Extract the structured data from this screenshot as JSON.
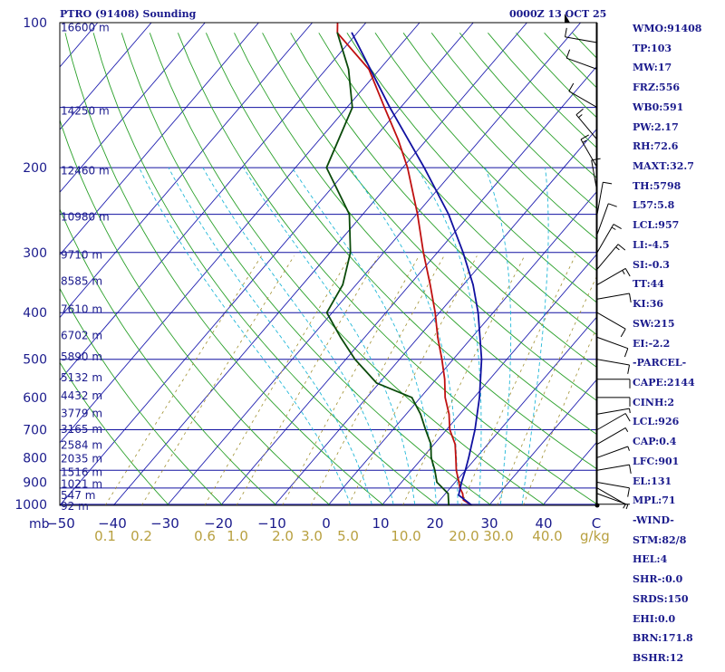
{
  "header": {
    "title": "PTRO (91408) Sounding",
    "timestamp": "0000Z 13 OCT 25"
  },
  "chart_data": {
    "type": "line",
    "title": "PTRO (91408) Sounding",
    "subtitle": "0000Z 13 OCT 25",
    "x_ticks": [
      "−50",
      "−40",
      "−30",
      "−20",
      "−10",
      "0",
      "10",
      "20",
      "30",
      "40",
      "C"
    ],
    "x_tick_values": [
      -50,
      -40,
      -30,
      -20,
      -10,
      0,
      10,
      20,
      30,
      40
    ],
    "x_unit": "C",
    "y_unit": "mb",
    "xlim": [
      -50,
      50
    ],
    "ylim": [
      1000,
      100
    ],
    "y_scale": "log",
    "pressure_levels": [
      1000,
      925,
      850,
      700,
      500,
      400,
      300,
      250,
      200,
      150,
      100
    ],
    "pressure_labels": [
      {
        "p": 1000,
        "label": "1000"
      },
      {
        "p": 900,
        "label": "900"
      },
      {
        "p": 800,
        "label": "800"
      },
      {
        "p": 700,
        "label": "700"
      },
      {
        "p": 600,
        "label": "600"
      },
      {
        "p": 500,
        "label": "500"
      },
      {
        "p": 400,
        "label": "400"
      },
      {
        "p": 300,
        "label": "300"
      },
      {
        "p": 200,
        "label": "200"
      },
      {
        "p": 100,
        "label": "100"
      }
    ],
    "height_labels": [
      {
        "p": 1005,
        "label": "92 m"
      },
      {
        "p": 955,
        "label": "547 m"
      },
      {
        "p": 903,
        "label": "1021 m"
      },
      {
        "p": 855,
        "label": "1516 m"
      },
      {
        "p": 800,
        "label": "2035 m"
      },
      {
        "p": 750,
        "label": "2584 m"
      },
      {
        "p": 695,
        "label": "3165 m"
      },
      {
        "p": 645,
        "label": "3779 m"
      },
      {
        "p": 592,
        "label": "4432 m"
      },
      {
        "p": 543,
        "label": "5132 m"
      },
      {
        "p": 492,
        "label": "5890 m"
      },
      {
        "p": 444,
        "label": "6702 m"
      },
      {
        "p": 392,
        "label": "7610 m"
      },
      {
        "p": 343,
        "label": "8585 m"
      },
      {
        "p": 302,
        "label": "9710 m"
      },
      {
        "p": 252,
        "label": "10980 m"
      },
      {
        "p": 202,
        "label": "12460 m"
      },
      {
        "p": 152,
        "label": "14250 m"
      },
      {
        "p": 102,
        "label": "16600 m"
      }
    ],
    "mixing_ratio_labels": [
      "0.1",
      "0.2",
      "0.6",
      "1.0",
      "2.0",
      "3.0",
      "5.0",
      "10.0",
      "20.0",
      "30.0",
      "40.0"
    ],
    "mixing_ratio_values": [
      0.1,
      0.2,
      0.6,
      1.0,
      2.0,
      3.0,
      5.0,
      10.0,
      20.0,
      30.0,
      40.0
    ],
    "mixing_ratio_unit": "g/kg",
    "series": [
      {
        "color": "#c01010",
        "points": [
          {
            "p": 1005,
            "t": 26.8
          },
          {
            "p": 980,
            "t": 24.4
          },
          {
            "p": 950,
            "t": 23.2
          },
          {
            "p": 925,
            "t": 21.8
          },
          {
            "p": 900,
            "t": 20.7
          },
          {
            "p": 850,
            "t": 18.3
          },
          {
            "p": 800,
            "t": 16.2
          },
          {
            "p": 750,
            "t": 13.9
          },
          {
            "p": 700,
            "t": 10.6
          },
          {
            "p": 650,
            "t": 8.0
          },
          {
            "p": 600,
            "t": 4.6
          },
          {
            "p": 550,
            "t": 1.6
          },
          {
            "p": 500,
            "t": -2.1
          },
          {
            "p": 450,
            "t": -6.4
          },
          {
            "p": 400,
            "t": -10.8
          },
          {
            "p": 350,
            "t": -16.2
          },
          {
            "p": 300,
            "t": -22.6
          },
          {
            "p": 250,
            "t": -29.8
          },
          {
            "p": 200,
            "t": -39.1
          },
          {
            "p": 175,
            "t": -45.3
          },
          {
            "p": 150,
            "t": -53.0
          },
          {
            "p": 125,
            "t": -62.0
          },
          {
            "p": 105,
            "t": -73.7
          },
          {
            "p": 100,
            "t": -75.3
          }
        ]
      },
      {
        "color": "#0a4a0a",
        "points": [
          {
            "p": 1005,
            "t": 22.5
          },
          {
            "p": 950,
            "t": 20.5
          },
          {
            "p": 900,
            "t": 16.6
          },
          {
            "p": 850,
            "t": 14.3
          },
          {
            "p": 800,
            "t": 11.6
          },
          {
            "p": 750,
            "t": 9.4
          },
          {
            "p": 700,
            "t": 6.1
          },
          {
            "p": 650,
            "t": 2.7
          },
          {
            "p": 600,
            "t": -1.6
          },
          {
            "p": 560,
            "t": -10.5
          },
          {
            "p": 500,
            "t": -18.3
          },
          {
            "p": 450,
            "t": -24.5
          },
          {
            "p": 400,
            "t": -31.0
          },
          {
            "p": 350,
            "t": -32.5
          },
          {
            "p": 300,
            "t": -36.2
          },
          {
            "p": 250,
            "t": -42.5
          },
          {
            "p": 200,
            "t": -54.2
          },
          {
            "p": 150,
            "t": -59.0
          },
          {
            "p": 125,
            "t": -65.8
          },
          {
            "p": 105,
            "t": -73.7
          }
        ]
      },
      {
        "color": "#1010a0",
        "points": [
          {
            "p": 1005,
            "t": 26.8
          },
          {
            "p": 957,
            "t": 22.7
          },
          {
            "p": 900,
            "t": 21.2
          },
          {
            "p": 850,
            "t": 20.0
          },
          {
            "p": 800,
            "t": 18.6
          },
          {
            "p": 700,
            "t": 15.3
          },
          {
            "p": 600,
            "t": 11.0
          },
          {
            "p": 500,
            "t": 5.3
          },
          {
            "p": 400,
            "t": -2.8
          },
          {
            "p": 350,
            "t": -8.2
          },
          {
            "p": 300,
            "t": -15.2
          },
          {
            "p": 250,
            "t": -24.0
          },
          {
            "p": 200,
            "t": -36.0
          },
          {
            "p": 150,
            "t": -52.0
          },
          {
            "p": 105,
            "t": -71.0
          }
        ]
      }
    ],
    "indices": [
      "WMO:91408",
      "TP:103",
      "MW:17",
      "FRZ:556",
      "WB0:591",
      "PW:2.17",
      "RH:72.6",
      "MAXT:32.7",
      "TH:5798",
      "L57:5.8",
      "LCL:957",
      "LI:-4.5",
      "SI:-0.3",
      "TT:44",
      "KI:36",
      "SW:215",
      "EI:-2.2",
      "-PARCEL-",
      "CAPE:2144",
      "CINH:2",
      "LCL:926",
      "CAP:0.4",
      "LFC:901",
      "EL:131",
      "MPL:71",
      "-WIND-",
      "STM:82/8",
      "HEL:4",
      "SHR-:0.0",
      "SRDS:150",
      "EHI:0.0",
      "BRN:171.8",
      "BSHR:12"
    ],
    "wind_barbs": [
      {
        "p": 1000,
        "dir": 90,
        "speed": 3
      },
      {
        "p": 950,
        "dir": 110,
        "speed": 5
      },
      {
        "p": 925,
        "dir": 120,
        "speed": 8
      },
      {
        "p": 900,
        "dir": 100,
        "speed": 10
      },
      {
        "p": 850,
        "dir": 80,
        "speed": 10
      },
      {
        "p": 800,
        "dir": 70,
        "speed": 8
      },
      {
        "p": 750,
        "dir": 60,
        "speed": 8
      },
      {
        "p": 700,
        "dir": 60,
        "speed": 10
      },
      {
        "p": 650,
        "dir": 80,
        "speed": 8
      },
      {
        "p": 600,
        "dir": 90,
        "speed": 10
      },
      {
        "p": 550,
        "dir": 90,
        "speed": 10
      },
      {
        "p": 500,
        "dir": 100,
        "speed": 10
      },
      {
        "p": 450,
        "dir": 110,
        "speed": 10
      },
      {
        "p": 400,
        "dir": 120,
        "speed": 10
      },
      {
        "p": 375,
        "dir": 80,
        "speed": 10
      },
      {
        "p": 350,
        "dir": 60,
        "speed": 15
      },
      {
        "p": 325,
        "dir": 40,
        "speed": 15
      },
      {
        "p": 300,
        "dir": 30,
        "speed": 15
      },
      {
        "p": 275,
        "dir": 20,
        "speed": 10
      },
      {
        "p": 250,
        "dir": 10,
        "speed": 10
      },
      {
        "p": 225,
        "dir": 350,
        "speed": 10
      },
      {
        "p": 200,
        "dir": 330,
        "speed": 15
      },
      {
        "p": 175,
        "dir": 320,
        "speed": 15
      },
      {
        "p": 150,
        "dir": 300,
        "speed": 10
      },
      {
        "p": 125,
        "dir": 290,
        "speed": 10
      },
      {
        "p": 110,
        "dir": 280,
        "speed": 10
      },
      {
        "p": 100,
        "dir": 270,
        "speed": 50
      }
    ],
    "colors": {
      "isobar": "#1010a0",
      "dry_adiabat": "#2aa02a",
      "isotherm": "#2020b0",
      "moist_adiabat": "#22b8d8",
      "mixing_ratio": "#a09030",
      "temperature": "#c01010",
      "dewpoint": "#0a4a0a",
      "parcel": "#1010a0",
      "label": "#1a1a8c",
      "mixing_label": "#b8a040"
    },
    "grid": true
  }
}
